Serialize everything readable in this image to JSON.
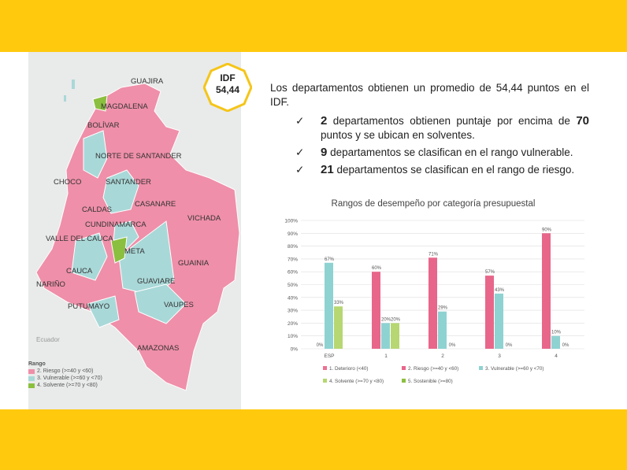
{
  "badge": {
    "line1": "IDF",
    "line2": "54,44"
  },
  "intro": "Los departamentos obtienen un promedio de 54,44 puntos en el IDF.",
  "bullets": [
    {
      "check": "✓",
      "num": "2",
      "text": " departamentos obtienen puntaje por encima de ",
      "num2": "70",
      "text2": " puntos y se ubican en solventes."
    },
    {
      "check": "✓",
      "num": "9",
      "text": " departamentos se clasifican en el rango vulnerable.",
      "num2": "",
      "text2": ""
    },
    {
      "check": "✓",
      "num": "21",
      "text": " departamentos se clasifican en el rango de riesgo.",
      "num2": "",
      "text2": ""
    }
  ],
  "map": {
    "labels": {
      "guajira": "GUAJIRA",
      "magdalena": "MAGDALENA",
      "bolivar": "BOLÍVAR",
      "norte": "NORTE DE SANTANDER",
      "choco": "CHOCO",
      "santander": "SANTANDER",
      "casanare": "CASANARE",
      "caldas": "CALDAS",
      "cundinamarca": "CUNDINAMARCA",
      "vichada": "VICHADA",
      "valle": "VALLE DEL CAUCA",
      "meta": "META",
      "guainia": "GUAINIA",
      "cauca": "CAUCA",
      "narino": "NARIÑO",
      "guaviare": "GUAVIARE",
      "putumayo": "PUTUMAYO",
      "vaupes": "VAUPES",
      "amazonas": "AMAZONAS",
      "ecuador": "Ecuador"
    },
    "legend": {
      "title": "Rango",
      "items": [
        {
          "label": "2. Riesgo (>=40 y <60)",
          "color": "#ef8fa9"
        },
        {
          "label": "3. Vulnerable (>=60 y <70)",
          "color": "#a9d8d8"
        },
        {
          "label": "4. Solvente (>=70 y <80)",
          "color": "#8bbf3f"
        }
      ]
    }
  },
  "chart_data": {
    "type": "bar",
    "title": "Rangos de desempeño por categoría presupuestal",
    "categories": [
      "ESP",
      "1",
      "2",
      "3",
      "4"
    ],
    "ylim": [
      0,
      100
    ],
    "yticks": [
      "0%",
      "10%",
      "20%",
      "30%",
      "40%",
      "50%",
      "60%",
      "70%",
      "80%",
      "90%",
      "100%"
    ],
    "series": [
      {
        "name": "1. Deterioro (<40)",
        "color": "#ee7092",
        "values": [
          null,
          null,
          null,
          null,
          null
        ]
      },
      {
        "name": "2. Riesgo (>=40 y <60)",
        "color": "#e8668a",
        "values": [
          0,
          60,
          71,
          57,
          90
        ]
      },
      {
        "name": "3. Vulnerable (>=60 y <70)",
        "color": "#8fd2d2",
        "values": [
          67,
          20,
          29,
          43,
          10
        ]
      },
      {
        "name": "4. Solvente (>=70 y <80)",
        "color": "#b6d771",
        "values": [
          33,
          20,
          0,
          0,
          0
        ]
      },
      {
        "name": "5. Sostenible (>=80)",
        "color": "#8bbf3f",
        "values": [
          null,
          null,
          null,
          null,
          null
        ]
      }
    ],
    "labels": [
      [
        "0%",
        "60%",
        "71%",
        "57%",
        "90%"
      ],
      [
        "67%",
        "20%",
        "29%",
        "43%",
        "10%"
      ],
      [
        "33%",
        "20%",
        "0%",
        "0%",
        "0%"
      ]
    ]
  }
}
